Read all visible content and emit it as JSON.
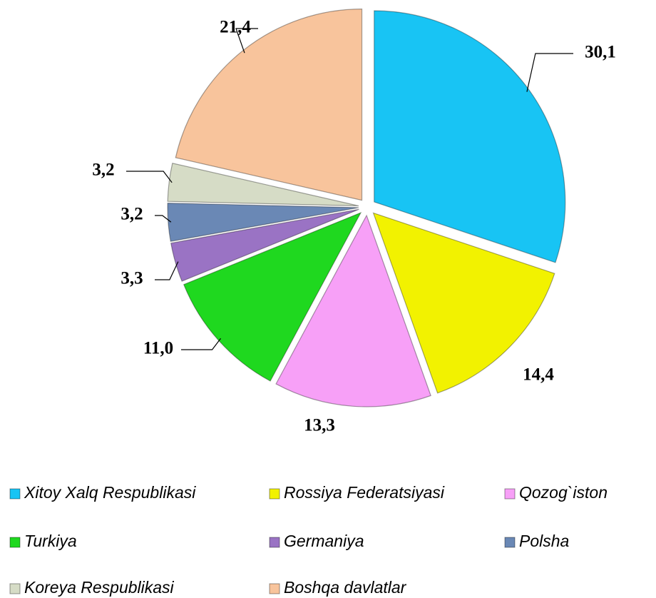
{
  "chart_data": {
    "type": "pie",
    "categories": [
      "Xitoy Xalq Respublikasi",
      "Rossiya Federatsiyasi",
      "Qozog`iston",
      "Turkiya",
      "Germaniya",
      "Polsha",
      "Koreya Respublikasi",
      "Boshqa davlatlar"
    ],
    "values": [
      30.1,
      14.4,
      13.3,
      11.0,
      3.3,
      3.2,
      3.2,
      21.4
    ],
    "value_labels": [
      "30,1",
      "14,4",
      "13,3",
      "11,0",
      "3,3",
      "3,2",
      "3,2",
      "21,4"
    ],
    "colors": [
      "#18c4f4",
      "#f2f200",
      "#f7a0f7",
      "#1fd81f",
      "#9a73c4",
      "#6a88b5",
      "#d6dcc6",
      "#f8c49c"
    ],
    "legend": "bottom"
  }
}
